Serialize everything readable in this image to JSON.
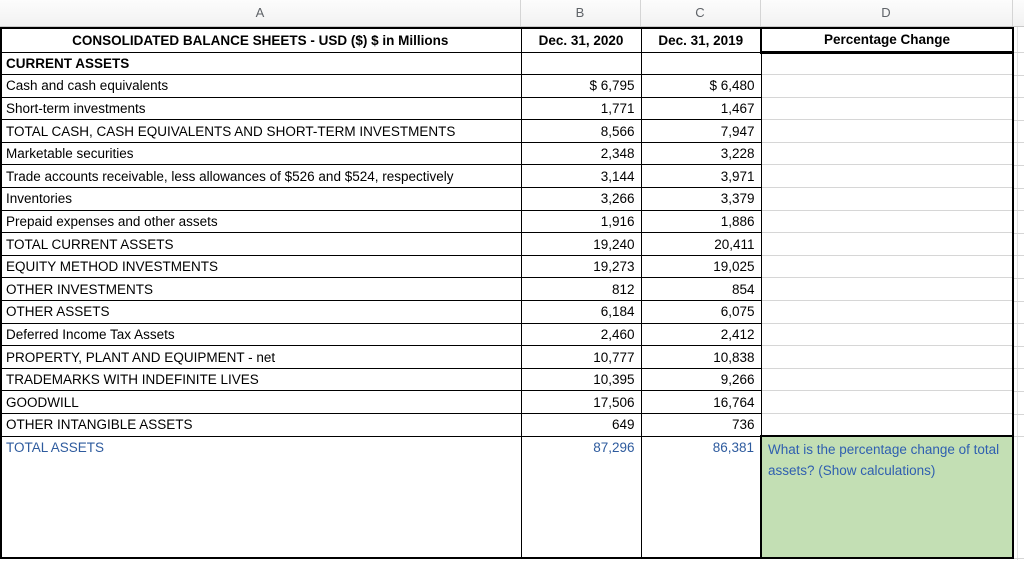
{
  "sheet": {
    "column_headers": [
      "A",
      "B",
      "C",
      "D"
    ],
    "header": {
      "title": "CONSOLIDATED BALANCE SHEETS - USD ($) $ in Millions",
      "col_b": "Dec. 31, 2020",
      "col_c": "Dec. 31, 2019",
      "col_d": "Percentage Change"
    },
    "rows": [
      {
        "label": "CURRENT ASSETS",
        "b": "",
        "c": "",
        "bold": true
      },
      {
        "label": "Cash and cash equivalents",
        "b": "$ 6,795",
        "c": "$ 6,480"
      },
      {
        "label": "Short-term investments",
        "b": "1,771",
        "c": "1,467"
      },
      {
        "label": "TOTAL CASH, CASH EQUIVALENTS AND SHORT-TERM INVESTMENTS",
        "b": "8,566",
        "c": "7,947"
      },
      {
        "label": "Marketable securities",
        "b": "2,348",
        "c": "3,228"
      },
      {
        "label": "Trade accounts receivable, less allowances of $526 and $524, respectively",
        "b": "3,144",
        "c": "3,971"
      },
      {
        "label": "Inventories",
        "b": "3,266",
        "c": "3,379"
      },
      {
        "label": "Prepaid expenses and other assets",
        "b": "1,916",
        "c": "1,886"
      },
      {
        "label": "TOTAL CURRENT ASSETS",
        "b": "19,240",
        "c": "20,411"
      },
      {
        "label": "EQUITY METHOD INVESTMENTS",
        "b": "19,273",
        "c": "19,025"
      },
      {
        "label": "OTHER INVESTMENTS",
        "b": "812",
        "c": "854"
      },
      {
        "label": "OTHER ASSETS",
        "b": "6,184",
        "c": "6,075"
      },
      {
        "label": "Deferred Income Tax Assets",
        "b": "2,460",
        "c": "2,412"
      },
      {
        "label": "PROPERTY, PLANT AND EQUIPMENT - net",
        "b": "10,777",
        "c": "10,838"
      },
      {
        "label": "TRADEMARKS WITH INDEFINITE LIVES",
        "b": "10,395",
        "c": "9,266"
      },
      {
        "label": "GOODWILL",
        "b": "17,506",
        "c": "16,764"
      },
      {
        "label": "OTHER INTANGIBLE ASSETS",
        "b": "649",
        "c": "736"
      }
    ],
    "total_row": {
      "label": "TOTAL ASSETS",
      "b": "87,296",
      "c": "86,381"
    },
    "question": "What is the percentage change of total assets? (Show calculations)",
    "colors": {
      "question_bg": "#c3dfb4",
      "total_blue": "#2e5b9e",
      "question_blue": "#2f5fb0"
    }
  }
}
